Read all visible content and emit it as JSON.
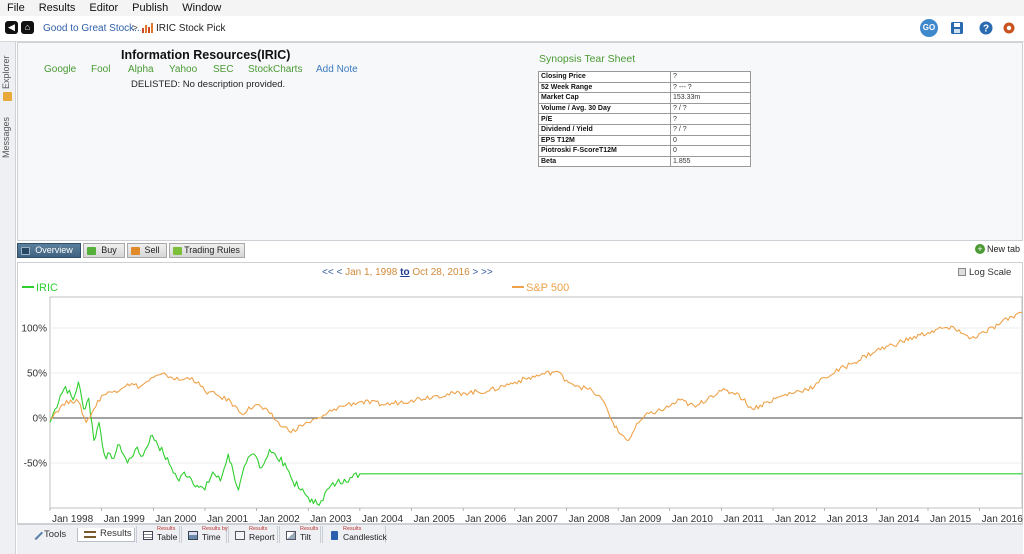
{
  "menu": [
    "File",
    "Results",
    "Editor",
    "Publish",
    "Window"
  ],
  "toolbar": {
    "breadcrumb_parent": "Good to Great Stock...",
    "breadcrumb_sep": ">",
    "breadcrumb_current": "IRIC Stock Pick",
    "go_label": "GO"
  },
  "sidebar": {
    "explorer": "Explorer",
    "messages": "Messages"
  },
  "overview": {
    "stock_name": "Information Resources(IRIC)",
    "links": [
      "Google",
      "Fool",
      "Alpha",
      "Yahoo",
      "SEC",
      "StockCharts"
    ],
    "add_note": "Add Note",
    "description": "DELISTED: No description provided.",
    "tearsheet_title": "Synopsis Tear Sheet",
    "tearsheet": [
      [
        "Closing Price",
        "?"
      ],
      [
        "52 Week Range",
        "? --- ?"
      ],
      [
        "Market Cap",
        "153.33m"
      ],
      [
        "Volume / Avg. 30 Day",
        "? / ?"
      ],
      [
        "P/E",
        "?"
      ],
      [
        "Dividend / Yield",
        "? / ?"
      ],
      [
        "EPS T12M",
        "0"
      ],
      [
        "Piotroski F-ScoreT12M",
        "0"
      ],
      [
        "Beta",
        "1.855"
      ]
    ]
  },
  "tabs": [
    "Overview",
    "Buy",
    "Sell",
    "Trading Rules"
  ],
  "new_tab": "New tab",
  "chart_header": {
    "nav_left": "<< <",
    "start_date": "Jan 1, 1998",
    "to": "to",
    "end_date": "Oct 28, 2016",
    "nav_right": "> >>",
    "log_scale": "Log Scale"
  },
  "bottom": {
    "tools": "Tools",
    "results": "Results",
    "result_tabs": [
      {
        "sup": "Results",
        "main": "Table"
      },
      {
        "sup": "Results by",
        "main": "Time"
      },
      {
        "sup": "Results",
        "main": "Report"
      },
      {
        "sup": "Results",
        "main": "Tilt"
      },
      {
        "sup": "Results",
        "main": "Candlestick"
      }
    ]
  },
  "colors": {
    "iric": "#2fcf2f",
    "sp500": "#eea24a",
    "accent": "#4a9a33",
    "link_blue": "#2d5fa8"
  },
  "chart_data": {
    "type": "line",
    "title": "",
    "xlabel": "",
    "ylabel": "",
    "x_unit": "year",
    "ylim": [
      -100,
      130
    ],
    "yticks": [
      100,
      50,
      0,
      -50
    ],
    "ytick_labels": [
      "100%",
      "50%",
      "0%",
      "-50%"
    ],
    "xticks": [
      1998,
      1999,
      2000,
      2001,
      2002,
      2003,
      2004,
      2005,
      2006,
      2007,
      2008,
      2009,
      2010,
      2011,
      2012,
      2013,
      2014,
      2015,
      2016
    ],
    "xtick_labels": [
      "Jan 1998",
      "Jan 1999",
      "Jan 2000",
      "Jan 2001",
      "Jan 2002",
      "Jan 2003",
      "Jan 2004",
      "Jan 2005",
      "Jan 2006",
      "Jan 2007",
      "Jan 2008",
      "Jan 2009",
      "Jan 2010",
      "Jan 2011",
      "Jan 2012",
      "Jan 2013",
      "Jan 2014",
      "Jan 2015",
      "Jan 2016"
    ],
    "xlim": [
      1998.0,
      2016.82
    ],
    "legend_placement": "top",
    "grid": "horizontal",
    "series": [
      {
        "name": "IRIC",
        "color": "#2fcf2f",
        "x": [
          1998.0,
          1998.1,
          1998.2,
          1998.3,
          1998.45,
          1998.55,
          1998.65,
          1998.75,
          1998.85,
          1998.95,
          1999.05,
          1999.2,
          1999.35,
          1999.5,
          1999.65,
          1999.8,
          1999.95,
          2000.05,
          2000.2,
          2000.35,
          2000.5,
          2000.6,
          2000.7,
          2000.85,
          2001.0,
          2001.15,
          2001.3,
          2001.45,
          2001.55,
          2001.65,
          2001.8,
          2001.95,
          2002.1,
          2002.25,
          2002.4,
          2002.55,
          2002.7,
          2002.85,
          2003.0,
          2003.1,
          2003.25,
          2003.4,
          2003.55,
          2003.7,
          2003.85,
          2004.0,
          2005.0,
          2006.0,
          2008.0,
          2010.0,
          2012.0,
          2014.0,
          2016.82
        ],
        "y": [
          -5,
          10,
          25,
          35,
          20,
          40,
          10,
          22,
          -25,
          -5,
          -40,
          -45,
          -30,
          -50,
          -35,
          -42,
          -20,
          -25,
          -40,
          -55,
          -70,
          -60,
          -65,
          -75,
          -80,
          -60,
          -70,
          -40,
          -60,
          -80,
          -50,
          -40,
          -55,
          -35,
          -45,
          -50,
          -70,
          -80,
          -88,
          -95,
          -92,
          -78,
          -72,
          -68,
          -66,
          -62,
          -62,
          -62,
          -62,
          -62,
          -62,
          -62,
          -62
        ]
      },
      {
        "name": "S&P 500",
        "color": "#eea24a",
        "x": [
          1998.0,
          1998.2,
          1998.4,
          1998.55,
          1998.7,
          1998.85,
          1999.0,
          1999.25,
          1999.5,
          1999.75,
          2000.0,
          2000.25,
          2000.5,
          2000.75,
          2001.0,
          2001.25,
          2001.5,
          2001.7,
          2002.0,
          2002.25,
          2002.5,
          2002.75,
          2002.85,
          2003.0,
          2003.25,
          2003.5,
          2003.75,
          2004.0,
          2004.5,
          2005.0,
          2005.5,
          2006.0,
          2006.5,
          2007.0,
          2007.5,
          2007.8,
          2008.0,
          2008.25,
          2008.5,
          2008.7,
          2008.9,
          2009.0,
          2009.2,
          2009.4,
          2009.6,
          2009.9,
          2010.2,
          2010.5,
          2010.8,
          2011.0,
          2011.3,
          2011.6,
          2011.9,
          2012.2,
          2012.5,
          2012.8,
          2013.0,
          2013.5,
          2014.0,
          2014.5,
          2015.0,
          2015.3,
          2015.6,
          2015.8,
          2016.1,
          2016.4,
          2016.7,
          2016.82
        ],
        "y": [
          0,
          12,
          20,
          18,
          -5,
          10,
          25,
          30,
          38,
          35,
          45,
          48,
          42,
          45,
          30,
          25,
          18,
          5,
          15,
          5,
          -10,
          -15,
          -8,
          -5,
          0,
          10,
          15,
          18,
          15,
          20,
          25,
          28,
          30,
          40,
          48,
          52,
          42,
          35,
          30,
          20,
          -5,
          -15,
          -25,
          -5,
          5,
          10,
          20,
          12,
          25,
          30,
          28,
          10,
          18,
          25,
          30,
          35,
          45,
          60,
          75,
          85,
          95,
          100,
          98,
          88,
          95,
          105,
          115,
          117
        ]
      }
    ]
  }
}
